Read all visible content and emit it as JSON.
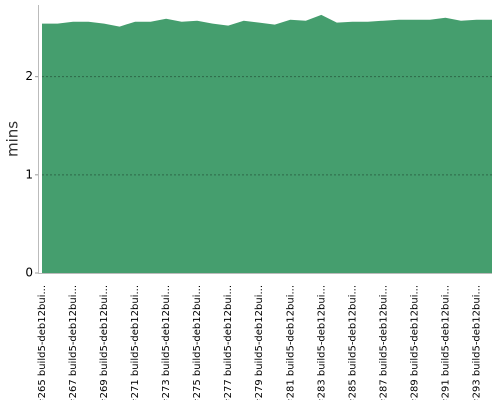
{
  "chart_data": {
    "type": "area",
    "y_label": "mins",
    "color": "#459e6e",
    "categories": [
      "#265 build5-deb12bui...",
      null,
      "#267 build5-deb12bui...",
      null,
      "#269 build5-deb12bui...",
      null,
      "#271 build5-deb12bui...",
      null,
      "#273 build5-deb12bui...",
      null,
      "#275 build5-deb12bui...",
      null,
      "#277 build5-deb12bui...",
      null,
      "#279 build5-deb12bui...",
      null,
      "#281 build5-deb12bui...",
      null,
      "#283 build5-deb12bui...",
      null,
      "#285 build5-deb12bui...",
      null,
      "#287 build5-deb12bui...",
      null,
      "#289 build5-deb12bui...",
      null,
      "#291 build5-deb12bui...",
      null,
      "#293 build5-deb12bui...",
      null
    ],
    "values": [
      2.54,
      2.54,
      2.56,
      2.56,
      2.54,
      2.51,
      2.56,
      2.56,
      2.59,
      2.56,
      2.57,
      2.54,
      2.52,
      2.57,
      2.55,
      2.53,
      2.58,
      2.57,
      2.63,
      2.55,
      2.56,
      2.56,
      2.57,
      2.58,
      2.58,
      2.58,
      2.6,
      2.57,
      2.58,
      2.58
    ],
    "ylim": [
      0,
      2.73
    ],
    "yticks": [
      0,
      1,
      2
    ],
    "grid": true
  }
}
